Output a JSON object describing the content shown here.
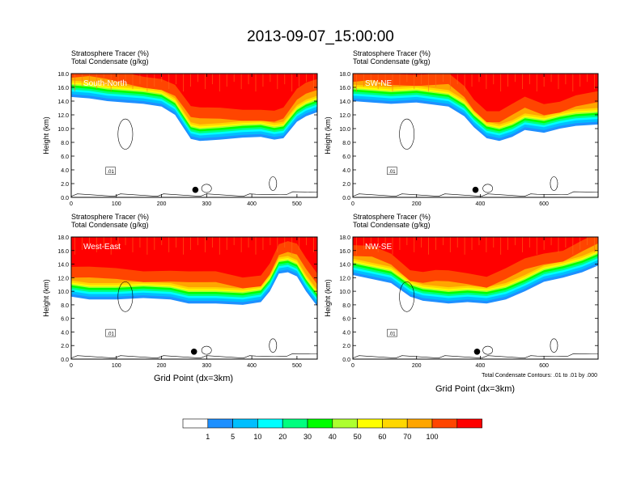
{
  "figure": {
    "title": "2013-09-07_15:00:00",
    "x_axis_label": "Grid Point (dx=3km)",
    "y_axis_label": "Height (km)",
    "contour_note": "Total Condensate Contours: .01 to .01 by .000",
    "contour_label": ".01"
  },
  "colors": {
    "levels": [
      "#ffffff",
      "#1e90ff",
      "#00bfff",
      "#00ffff",
      "#00ff7f",
      "#00ff00",
      "#adff2f",
      "#ffff00",
      "#ffd700",
      "#ffa500",
      "#ff4500",
      "#ff0000"
    ],
    "background": "#ffffff",
    "contour_line": "#000000"
  },
  "chart_data": [
    {
      "type": "heatmap",
      "panel_name": "South-North",
      "subtitle_line1": "Stratosphere Tracer   (%)",
      "subtitle_line2": "Total Condensate   (g/kg)",
      "xlim": [
        0,
        545
      ],
      "ylim": [
        0,
        18
      ],
      "xticks": [
        0,
        100,
        200,
        300,
        400,
        500
      ],
      "yticks": [
        "0.0",
        "2.0",
        "4.0",
        "6.0",
        "8.0",
        "10.0",
        "12.0",
        "14.0",
        "16.0",
        "18.0"
      ],
      "marker_x": 275,
      "marker_y": 1.1,
      "profile": [
        [
          0,
          14.6
        ],
        [
          40,
          14.4
        ],
        [
          80,
          14.0
        ],
        [
          120,
          13.8
        ],
        [
          160,
          13.6
        ],
        [
          200,
          13.2
        ],
        [
          230,
          12.0
        ],
        [
          250,
          10.0
        ],
        [
          265,
          8.5
        ],
        [
          285,
          8.2
        ],
        [
          330,
          8.4
        ],
        [
          380,
          8.7
        ],
        [
          420,
          8.8
        ],
        [
          450,
          8.4
        ],
        [
          470,
          8.6
        ],
        [
          500,
          11.0
        ],
        [
          520,
          11.8
        ],
        [
          545,
          12.4
        ]
      ]
    },
    {
      "type": "heatmap",
      "panel_name": "SW-NE",
      "subtitle_line1": "Stratosphere Tracer   (%)",
      "subtitle_line2": "Total Condensate   (g/kg)",
      "xlim": [
        0,
        770
      ],
      "ylim": [
        0,
        18
      ],
      "xticks": [
        0,
        200,
        400,
        600
      ],
      "yticks": [
        "0.0",
        "2.0",
        "4.0",
        "6.0",
        "8.0",
        "10.0",
        "12.0",
        "14.0",
        "16.0",
        "18.0"
      ],
      "marker_x": 385,
      "marker_y": 1.1,
      "profile": [
        [
          0,
          14.0
        ],
        [
          60,
          13.8
        ],
        [
          120,
          13.6
        ],
        [
          200,
          13.8
        ],
        [
          300,
          13.2
        ],
        [
          350,
          11.8
        ],
        [
          380,
          10.2
        ],
        [
          420,
          8.6
        ],
        [
          460,
          8.2
        ],
        [
          500,
          8.8
        ],
        [
          540,
          9.8
        ],
        [
          600,
          9.4
        ],
        [
          650,
          10.0
        ],
        [
          700,
          10.4
        ],
        [
          770,
          10.6
        ]
      ]
    },
    {
      "type": "heatmap",
      "panel_name": "West-East",
      "subtitle_line1": "Stratosphere Tracer   (%)",
      "subtitle_line2": "Total Condensate   (g/kg)",
      "xlim": [
        0,
        545
      ],
      "ylim": [
        0,
        18
      ],
      "xticks": [
        0,
        100,
        200,
        300,
        400,
        500
      ],
      "yticks": [
        "0.0",
        "2.0",
        "4.0",
        "6.0",
        "8.0",
        "10.0",
        "12.0",
        "14.0",
        "16.0",
        "18.0"
      ],
      "marker_x": 272,
      "marker_y": 1.1,
      "profile": [
        [
          0,
          9.2
        ],
        [
          40,
          8.8
        ],
        [
          100,
          8.8
        ],
        [
          160,
          9.0
        ],
        [
          220,
          8.8
        ],
        [
          260,
          8.2
        ],
        [
          320,
          8.2
        ],
        [
          380,
          8.0
        ],
        [
          420,
          8.4
        ],
        [
          440,
          10.0
        ],
        [
          460,
          12.6
        ],
        [
          480,
          12.8
        ],
        [
          500,
          12.2
        ],
        [
          520,
          10.0
        ],
        [
          545,
          7.8
        ]
      ]
    },
    {
      "type": "heatmap",
      "panel_name": "NW-SE",
      "subtitle_line1": "Stratosphere Tracer   (%)",
      "subtitle_line2": "Total Condensate   (g/kg)",
      "xlim": [
        0,
        770
      ],
      "ylim": [
        0,
        18
      ],
      "xticks": [
        0,
        200,
        400,
        600
      ],
      "yticks": [
        "0.0",
        "2.0",
        "4.0",
        "6.0",
        "8.0",
        "10.0",
        "12.0",
        "14.0",
        "16.0",
        "18.0"
      ],
      "marker_x": 390,
      "marker_y": 1.1,
      "profile": [
        [
          0,
          12.4
        ],
        [
          60,
          11.8
        ],
        [
          120,
          11.2
        ],
        [
          180,
          9.2
        ],
        [
          220,
          8.6
        ],
        [
          260,
          8.4
        ],
        [
          300,
          8.2
        ],
        [
          360,
          8.4
        ],
        [
          420,
          8.2
        ],
        [
          480,
          8.8
        ],
        [
          540,
          10.0
        ],
        [
          600,
          11.4
        ],
        [
          660,
          12.0
        ],
        [
          720,
          12.8
        ],
        [
          770,
          13.8
        ]
      ]
    }
  ],
  "colorbar": {
    "labels": [
      "1",
      "5",
      "10",
      "20",
      "30",
      "40",
      "50",
      "60",
      "70",
      "100"
    ]
  }
}
